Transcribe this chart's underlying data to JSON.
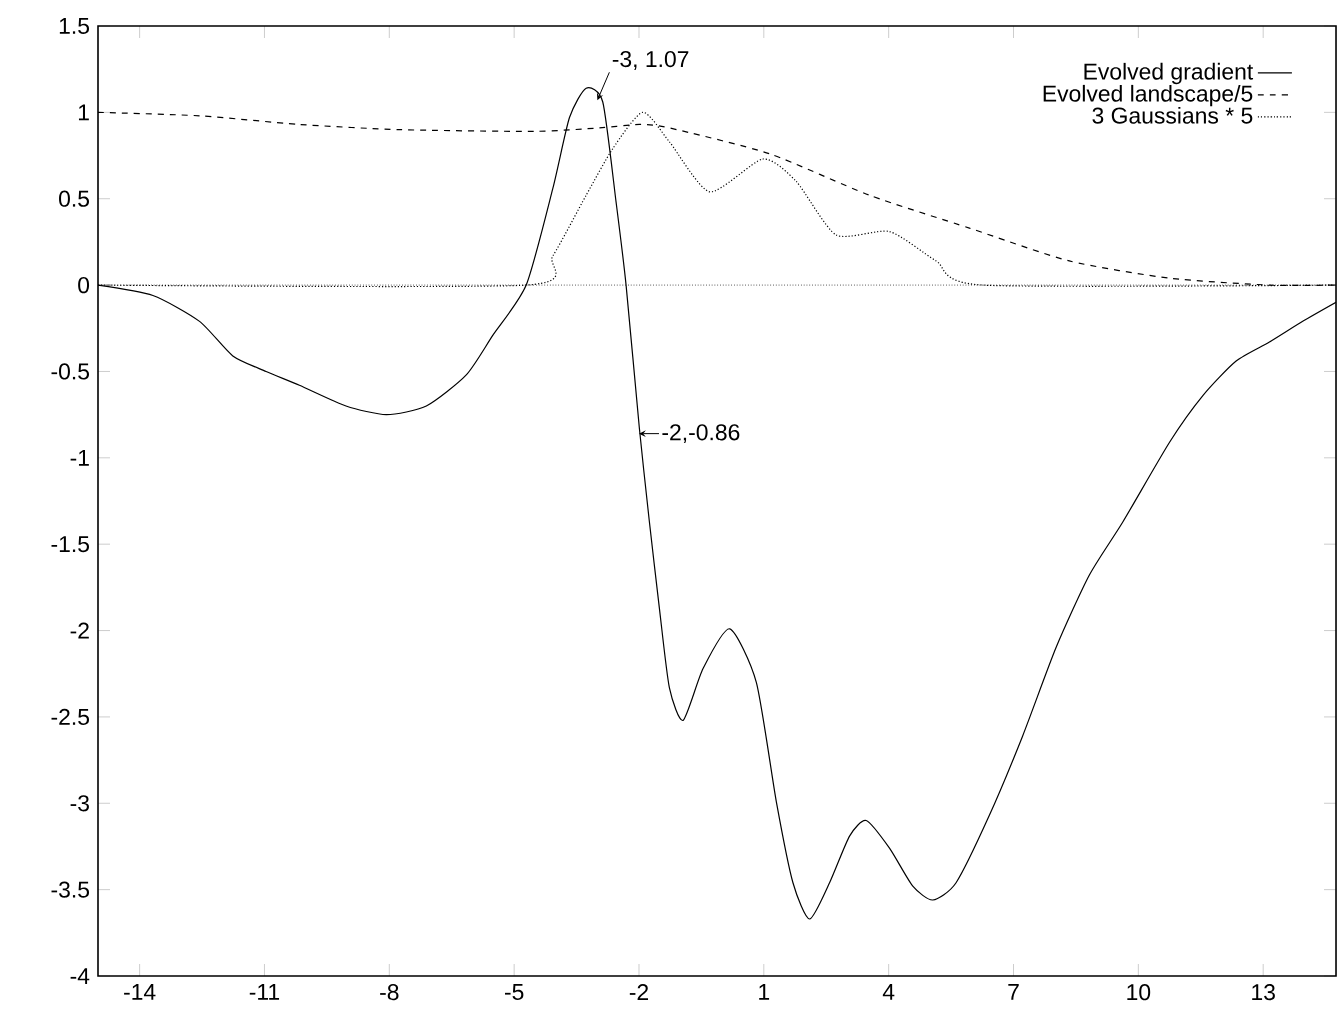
{
  "chart_data": {
    "type": "line",
    "xlim": [
      -15,
      14.75
    ],
    "ylim": [
      -4,
      1.5
    ],
    "xticks": [
      -14,
      -11,
      -8,
      -5,
      -2,
      1,
      4,
      7,
      10,
      13
    ],
    "yticks": [
      -4,
      -3.5,
      -3,
      -2.5,
      -2,
      -1.5,
      -1,
      -0.5,
      0,
      0.5,
      1,
      1.5
    ],
    "grid": false,
    "legend": "top right",
    "marker": "none",
    "series": [
      {
        "name": "Evolved gradient",
        "color": "#000000",
        "line_style": "solid",
        "x": [
          -15.0,
          -13.68,
          -12.56,
          -11.76,
          -10.96,
          -10.16,
          -9.04,
          -8.07,
          -7.11,
          -6.15,
          -5.51,
          -4.71,
          -4.07,
          -3.67,
          -3.27,
          -2.87,
          -2.55,
          -2.31,
          -1.99,
          -1.75,
          -1.51,
          -1.27,
          -0.94,
          -0.46,
          0.18,
          0.82,
          1.3,
          1.7,
          2.1,
          2.58,
          3.06,
          3.46,
          4.02,
          4.58,
          5.06,
          5.62,
          6.42,
          7.22,
          8.02,
          8.82,
          9.63,
          10.75,
          11.55,
          12.35,
          13.15,
          13.95,
          14.75
        ],
        "values": [
          0,
          -0.06,
          -0.21,
          -0.41,
          -0.5,
          -0.58,
          -0.7,
          -0.75,
          -0.7,
          -0.52,
          -0.29,
          0,
          0.56,
          0.97,
          1.14,
          1.06,
          0.48,
          0,
          -0.83,
          -1.37,
          -1.87,
          -2.33,
          -2.52,
          -2.22,
          -1.99,
          -2.3,
          -2.99,
          -3.46,
          -3.67,
          -3.46,
          -3.19,
          -3.1,
          -3.26,
          -3.48,
          -3.56,
          -3.46,
          -3.07,
          -2.61,
          -2.1,
          -1.68,
          -1.37,
          -0.91,
          -0.64,
          -0.44,
          -0.33,
          -0.21,
          -0.1
        ]
      },
      {
        "name": "Evolved landscape/5",
        "color": "#000000",
        "line_style": "dashed",
        "x": [
          -15.0,
          -12.56,
          -10.16,
          -7.75,
          -4.55,
          -2.95,
          -1.99,
          -1.27,
          1.14,
          3.54,
          5.94,
          8.34,
          10.75,
          13.15,
          14.75
        ],
        "values": [
          1.0,
          0.98,
          0.93,
          0.9,
          0.89,
          0.91,
          0.93,
          0.91,
          0.76,
          0.52,
          0.33,
          0.14,
          0.04,
          0,
          0
        ]
      },
      {
        "name": "3 Gaussians * 5",
        "color": "#000000",
        "line_style": "dotted",
        "x": [
          -15.0,
          -4.71,
          -4.07,
          -3.27,
          -2.63,
          -1.91,
          -1.27,
          -0.3,
          0.98,
          1.78,
          2.74,
          4.02,
          5.14,
          6.26,
          14.75
        ],
        "values": [
          0,
          0,
          0.17,
          0.52,
          0.79,
          1.0,
          0.83,
          0.54,
          0.73,
          0.6,
          0.29,
          0.31,
          0.14,
          0,
          0
        ]
      }
    ],
    "ref_lines": [
      {
        "axis": "y",
        "value": 0,
        "color": "#000000",
        "line_style": "dotted"
      }
    ],
    "annotations": [
      {
        "text": "-3, 1.07",
        "x": -3,
        "y": 1.07
      },
      {
        "text": "-2,-0.86",
        "x": -2,
        "y": -0.86
      }
    ]
  }
}
